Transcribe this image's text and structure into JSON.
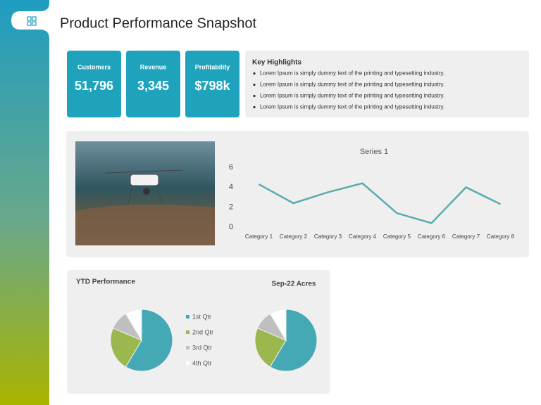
{
  "title": "Product Performance Snapshot",
  "kpis": [
    {
      "label": "Customers",
      "value": "51,796"
    },
    {
      "label": "Revenue",
      "value": "3,345"
    },
    {
      "label": "Profitability",
      "value": "$798k"
    }
  ],
  "highlights": {
    "title": "Key Highlights",
    "items": [
      "Lorem Ipsum is simply dummy text of the printing and typesetting industry.",
      "Lorem Ipsum is simply dummy text of the printing and typesetting industry.",
      "Lorem Ipsum is simply dummy text of the printing and typesetting industry.",
      "Lorem Ipsum is simply dummy text of the printing and typesetting industry."
    ]
  },
  "pie_panel_title": "YTD Performance",
  "chart_data": [
    {
      "type": "line",
      "title": "Series 1",
      "categories": [
        "Category 1",
        "Category 2",
        "Category 3",
        "Category 4",
        "Category 5",
        "Category 6",
        "Category 7",
        "Category 8"
      ],
      "series": [
        {
          "name": "Series 1",
          "color": "#5aabab",
          "values": [
            4.3,
            2.4,
            3.5,
            4.4,
            1.4,
            0.4,
            4.0,
            2.3
          ]
        }
      ],
      "ylim": [
        0,
        6
      ],
      "yticks": [
        0,
        2,
        4,
        6
      ]
    },
    {
      "type": "pie",
      "categories": [
        "1st Qtr",
        "2nd Qtr",
        "3rd Qtr",
        "4th Qtr"
      ],
      "values": [
        8.2,
        3.2,
        1.4,
        1.2
      ],
      "colors": [
        "#45a9b5",
        "#9bb84e",
        "#bfbfbf",
        "#ffffff"
      ]
    },
    {
      "type": "pie",
      "title": "Sep-22 Acres",
      "values": [
        8.2,
        3.2,
        1.4,
        1.2
      ],
      "colors": [
        "#45a9b5",
        "#9bb84e",
        "#bfbfbf",
        "#ffffff"
      ]
    }
  ]
}
